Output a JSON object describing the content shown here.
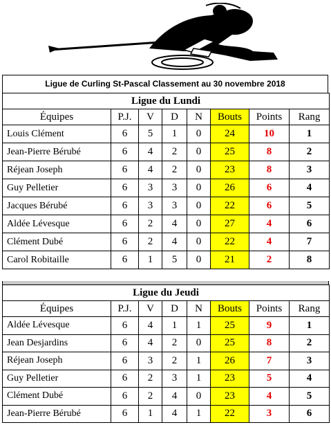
{
  "header": {
    "title": "Ligue de Curling St-Pascal  Classement au 30 novembre 2018"
  },
  "columns": {
    "team": "Équipes",
    "pj": "P.J.",
    "v": "V",
    "d": "D",
    "n": "N",
    "bouts": "Bouts",
    "points": "Points",
    "rang": "Rang"
  },
  "leagues": [
    {
      "name": "Ligue du Lundi",
      "rows": [
        {
          "team": "Louis Clément",
          "pj": "6",
          "v": "5",
          "d": "1",
          "n": "0",
          "bouts": "24",
          "points": "10",
          "rang": "1"
        },
        {
          "team": "Jean-Pierre Bérubé",
          "pj": "6",
          "v": "4",
          "d": "2",
          "n": "0",
          "bouts": "25",
          "points": "8",
          "rang": "2"
        },
        {
          "team": "Réjean Joseph",
          "pj": "6",
          "v": "4",
          "d": "2",
          "n": "0",
          "bouts": "23",
          "points": "8",
          "rang": "3"
        },
        {
          "team": "Guy Pelletier",
          "pj": "6",
          "v": "3",
          "d": "3",
          "n": "0",
          "bouts": "26",
          "points": "6",
          "rang": "4"
        },
        {
          "team": "Jacques Bérubé",
          "pj": "6",
          "v": "3",
          "d": "3",
          "n": "0",
          "bouts": "22",
          "points": "6",
          "rang": "5"
        },
        {
          "team": "Aldée Lévesque",
          "pj": "6",
          "v": "2",
          "d": "4",
          "n": "0",
          "bouts": "27",
          "points": "4",
          "rang": "6"
        },
        {
          "team": "Clément Dubé",
          "pj": "6",
          "v": "2",
          "d": "4",
          "n": "0",
          "bouts": "22",
          "points": "4",
          "rang": "7"
        },
        {
          "team": "Carol Robitaille",
          "pj": "6",
          "v": "1",
          "d": "5",
          "n": "0",
          "bouts": "21",
          "points": "2",
          "rang": "8"
        }
      ]
    },
    {
      "name": "Ligue du Jeudi",
      "rows": [
        {
          "team": "Aldée Lévesque",
          "pj": "6",
          "v": "4",
          "d": "1",
          "n": "1",
          "bouts": "25",
          "points": "9",
          "rang": "1"
        },
        {
          "team": "Jean Desjardins",
          "pj": "6",
          "v": "4",
          "d": "2",
          "n": "0",
          "bouts": "25",
          "points": "8",
          "rang": "2"
        },
        {
          "team": "Réjean Joseph",
          "pj": "6",
          "v": "3",
          "d": "2",
          "n": "1",
          "bouts": "26",
          "points": "7",
          "rang": "3"
        },
        {
          "team": "Guy Pelletier",
          "pj": "6",
          "v": "2",
          "d": "3",
          "n": "1",
          "bouts": "23",
          "points": "5",
          "rang": "4"
        },
        {
          "team": "Clément Dubé",
          "pj": "6",
          "v": "2",
          "d": "4",
          "n": "0",
          "bouts": "23",
          "points": "4",
          "rang": "5"
        },
        {
          "team": "Jean-Pierre Bérubé",
          "pj": "6",
          "v": "1",
          "d": "4",
          "n": "1",
          "bouts": "22",
          "points": "3",
          "rang": "6"
        }
      ]
    }
  ],
  "colors": {
    "bouts_bg": "#ffff00",
    "points_text": "#e60000",
    "separator": "#c8c8c8"
  },
  "logo": {
    "icon": "curler-silhouette-icon"
  }
}
